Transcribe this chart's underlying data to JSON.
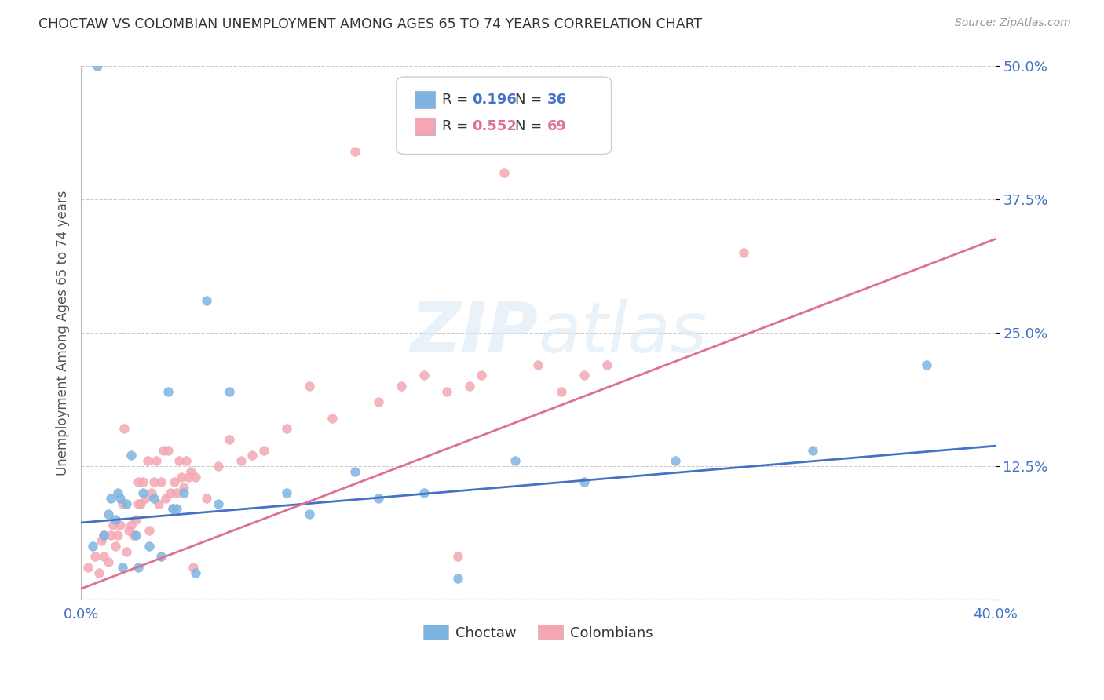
{
  "title": "CHOCTAW VS COLOMBIAN UNEMPLOYMENT AMONG AGES 65 TO 74 YEARS CORRELATION CHART",
  "source": "Source: ZipAtlas.com",
  "xlabel": "",
  "ylabel": "Unemployment Among Ages 65 to 74 years",
  "xlim": [
    0.0,
    0.4
  ],
  "ylim": [
    0.0,
    0.5
  ],
  "xticks": [
    0.0,
    0.1,
    0.2,
    0.3,
    0.4
  ],
  "xticklabels": [
    "0.0%",
    "",
    "",
    "",
    "40.0%"
  ],
  "ytick_positions": [
    0.0,
    0.125,
    0.25,
    0.375,
    0.5
  ],
  "yticklabels": [
    "",
    "12.5%",
    "25.0%",
    "37.5%",
    "50.0%"
  ],
  "choctaw_color": "#7eb4e2",
  "colombian_color": "#f4a7b3",
  "choctaw_line_color": "#4472c4",
  "colombian_line_color": "#e07090",
  "legend_label_choctaw": "Choctaw",
  "legend_label_colombian": "Colombians",
  "R_choctaw": 0.196,
  "N_choctaw": 36,
  "R_colombian": 0.552,
  "N_colombian": 69,
  "choctaw_intercept": 0.072,
  "choctaw_slope": 0.18,
  "colombian_intercept": 0.01,
  "colombian_slope": 0.82,
  "watermark": "ZIPatlas",
  "background_color": "#ffffff",
  "grid_color": "#cccccc",
  "choctaw_points_x": [
    0.005,
    0.007,
    0.01,
    0.012,
    0.013,
    0.015,
    0.016,
    0.017,
    0.018,
    0.02,
    0.022,
    0.024,
    0.025,
    0.027,
    0.03,
    0.032,
    0.035,
    0.038,
    0.04,
    0.042,
    0.045,
    0.05,
    0.055,
    0.06,
    0.065,
    0.09,
    0.1,
    0.12,
    0.13,
    0.15,
    0.165,
    0.19,
    0.22,
    0.26,
    0.32,
    0.37
  ],
  "choctaw_points_y": [
    0.05,
    0.5,
    0.06,
    0.08,
    0.095,
    0.075,
    0.1,
    0.095,
    0.03,
    0.09,
    0.135,
    0.06,
    0.03,
    0.1,
    0.05,
    0.095,
    0.04,
    0.195,
    0.085,
    0.085,
    0.1,
    0.025,
    0.28,
    0.09,
    0.195,
    0.1,
    0.08,
    0.12,
    0.095,
    0.1,
    0.02,
    0.13,
    0.11,
    0.13,
    0.14,
    0.22
  ],
  "colombian_points_x": [
    0.003,
    0.006,
    0.008,
    0.009,
    0.01,
    0.01,
    0.012,
    0.013,
    0.014,
    0.015,
    0.016,
    0.017,
    0.018,
    0.019,
    0.02,
    0.021,
    0.022,
    0.023,
    0.024,
    0.025,
    0.025,
    0.026,
    0.027,
    0.028,
    0.029,
    0.03,
    0.031,
    0.032,
    0.033,
    0.034,
    0.035,
    0.036,
    0.037,
    0.038,
    0.039,
    0.04,
    0.041,
    0.042,
    0.043,
    0.044,
    0.045,
    0.046,
    0.047,
    0.048,
    0.049,
    0.05,
    0.055,
    0.06,
    0.065,
    0.07,
    0.075,
    0.08,
    0.09,
    0.1,
    0.11,
    0.12,
    0.13,
    0.14,
    0.15,
    0.16,
    0.165,
    0.17,
    0.175,
    0.185,
    0.2,
    0.21,
    0.22,
    0.23,
    0.29
  ],
  "colombian_points_y": [
    0.03,
    0.04,
    0.025,
    0.055,
    0.04,
    0.06,
    0.035,
    0.06,
    0.07,
    0.05,
    0.06,
    0.07,
    0.09,
    0.16,
    0.045,
    0.065,
    0.07,
    0.06,
    0.075,
    0.09,
    0.11,
    0.09,
    0.11,
    0.095,
    0.13,
    0.065,
    0.1,
    0.11,
    0.13,
    0.09,
    0.11,
    0.14,
    0.095,
    0.14,
    0.1,
    0.085,
    0.11,
    0.1,
    0.13,
    0.115,
    0.105,
    0.13,
    0.115,
    0.12,
    0.03,
    0.115,
    0.095,
    0.125,
    0.15,
    0.13,
    0.135,
    0.14,
    0.16,
    0.2,
    0.17,
    0.42,
    0.185,
    0.2,
    0.21,
    0.195,
    0.04,
    0.2,
    0.21,
    0.4,
    0.22,
    0.195,
    0.21,
    0.22,
    0.325
  ]
}
